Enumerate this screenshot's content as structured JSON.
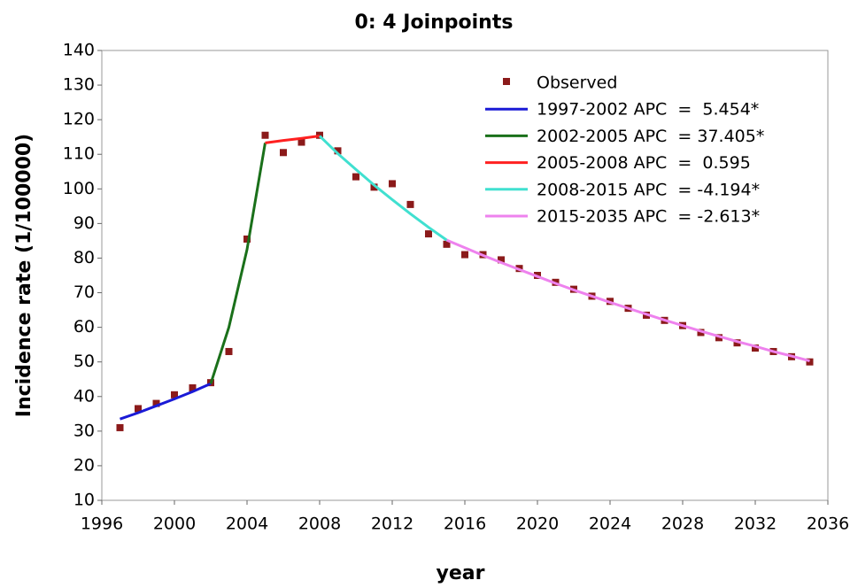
{
  "chart_data": {
    "type": "line",
    "title": "0: 4 Joinpoints",
    "xlabel": "year",
    "ylabel": "Incidence rate (1/100000)",
    "xlim": [
      1996,
      2036
    ],
    "xticks": [
      1996,
      2000,
      2004,
      2008,
      2012,
      2016,
      2020,
      2024,
      2028,
      2032,
      2036
    ],
    "ylim": [
      10,
      140
    ],
    "yticks": [
      10,
      20,
      30,
      40,
      50,
      60,
      70,
      80,
      90,
      100,
      110,
      120,
      130,
      140
    ],
    "legend": "upper right",
    "series": [
      {
        "name": "Observed",
        "mode": "markers",
        "color": "#8b1a1a",
        "x": [
          1997,
          1998,
          1999,
          2000,
          2001,
          2002,
          2003,
          2004,
          2005,
          2006,
          2007,
          2008,
          2009,
          2010,
          2011,
          2012,
          2013,
          2014,
          2015,
          2016,
          2017,
          2018,
          2019,
          2020,
          2021,
          2022,
          2023,
          2024,
          2025,
          2026,
          2027,
          2028,
          2029,
          2030,
          2031,
          2032,
          2033,
          2034,
          2035
        ],
        "values": [
          31,
          36.5,
          38,
          40.5,
          42.5,
          44,
          53,
          85.5,
          115.5,
          110.5,
          113.5,
          115.5,
          111,
          103.5,
          100.5,
          101.5,
          95.5,
          87,
          84,
          81,
          81,
          79.5,
          77,
          75,
          73,
          71,
          69,
          67.5,
          65.5,
          63.5,
          62,
          60.5,
          58.5,
          57,
          55.5,
          54,
          53,
          51.5,
          50
        ]
      },
      {
        "name": "1997-2002 APC  =  5.454*",
        "mode": "lines",
        "color": "#1a1ad6",
        "x": [
          1997,
          1998,
          1999,
          2000,
          2001,
          2002
        ],
        "values": [
          33.5,
          35.3,
          37.3,
          39.3,
          41.4,
          43.7
        ]
      },
      {
        "name": "2002-2005 APC  = 37.405*",
        "mode": "lines",
        "color": "#1a701a",
        "x": [
          2002,
          2003,
          2004,
          2005
        ],
        "values": [
          43.7,
          60.0,
          82.5,
          113.3
        ]
      },
      {
        "name": "2005-2008 APC  =  0.595",
        "mode": "lines",
        "color": "#ff2020",
        "x": [
          2005,
          2006,
          2007,
          2008
        ],
        "values": [
          113.3,
          114.0,
          114.6,
          115.3
        ]
      },
      {
        "name": "2008-2015 APC  = -4.194*",
        "mode": "lines",
        "color": "#40e0d0",
        "x": [
          2008,
          2009,
          2010,
          2011,
          2012,
          2013,
          2014,
          2015
        ],
        "values": [
          115.3,
          110.2,
          105.6,
          101.1,
          96.9,
          92.8,
          88.9,
          85.2
        ]
      },
      {
        "name": "2015-2035 APC  = -2.613*",
        "mode": "lines",
        "color": "#ee82ee",
        "x": [
          2015,
          2016,
          2017,
          2018,
          2019,
          2020,
          2021,
          2022,
          2023,
          2024,
          2025,
          2026,
          2027,
          2028,
          2029,
          2030,
          2031,
          2032,
          2033,
          2034,
          2035
        ],
        "values": [
          85.2,
          83.0,
          80.8,
          78.7,
          76.7,
          74.7,
          72.7,
          70.8,
          69.0,
          67.2,
          65.5,
          63.8,
          62.1,
          60.5,
          58.9,
          57.4,
          55.9,
          54.5,
          53.0,
          51.7,
          50.3
        ]
      }
    ]
  }
}
